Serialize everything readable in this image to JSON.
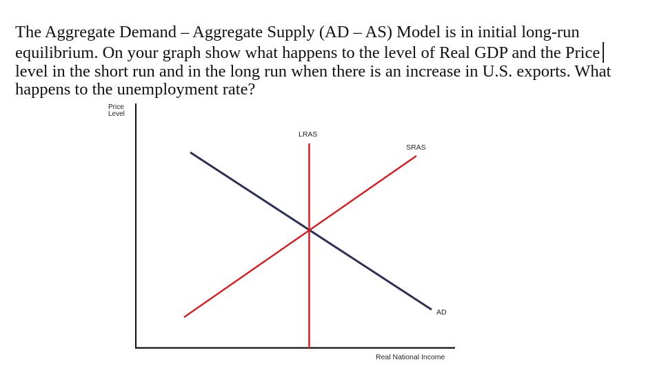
{
  "question": {
    "lines": [
      "The Aggregate Demand – Aggregate Supply (AD – AS) Model is in initial long-run",
      "equilibrium.  On your graph show what happens to the level of Real GDP and the Price",
      "level in the short run and in the long run when there is an increase in U.S. exports.  What",
      "happens to the unemployment rate?"
    ]
  },
  "diagram": {
    "y_axis_label_line1": "Price",
    "y_axis_label_line2": "Level",
    "x_axis_label": "Real National Income",
    "curves": {
      "lras": "LRAS",
      "sras": "SRAS",
      "ad": "AD"
    },
    "colors": {
      "axis": "#111111",
      "ad": "#2e2f55",
      "supply": "#d31f24"
    }
  }
}
